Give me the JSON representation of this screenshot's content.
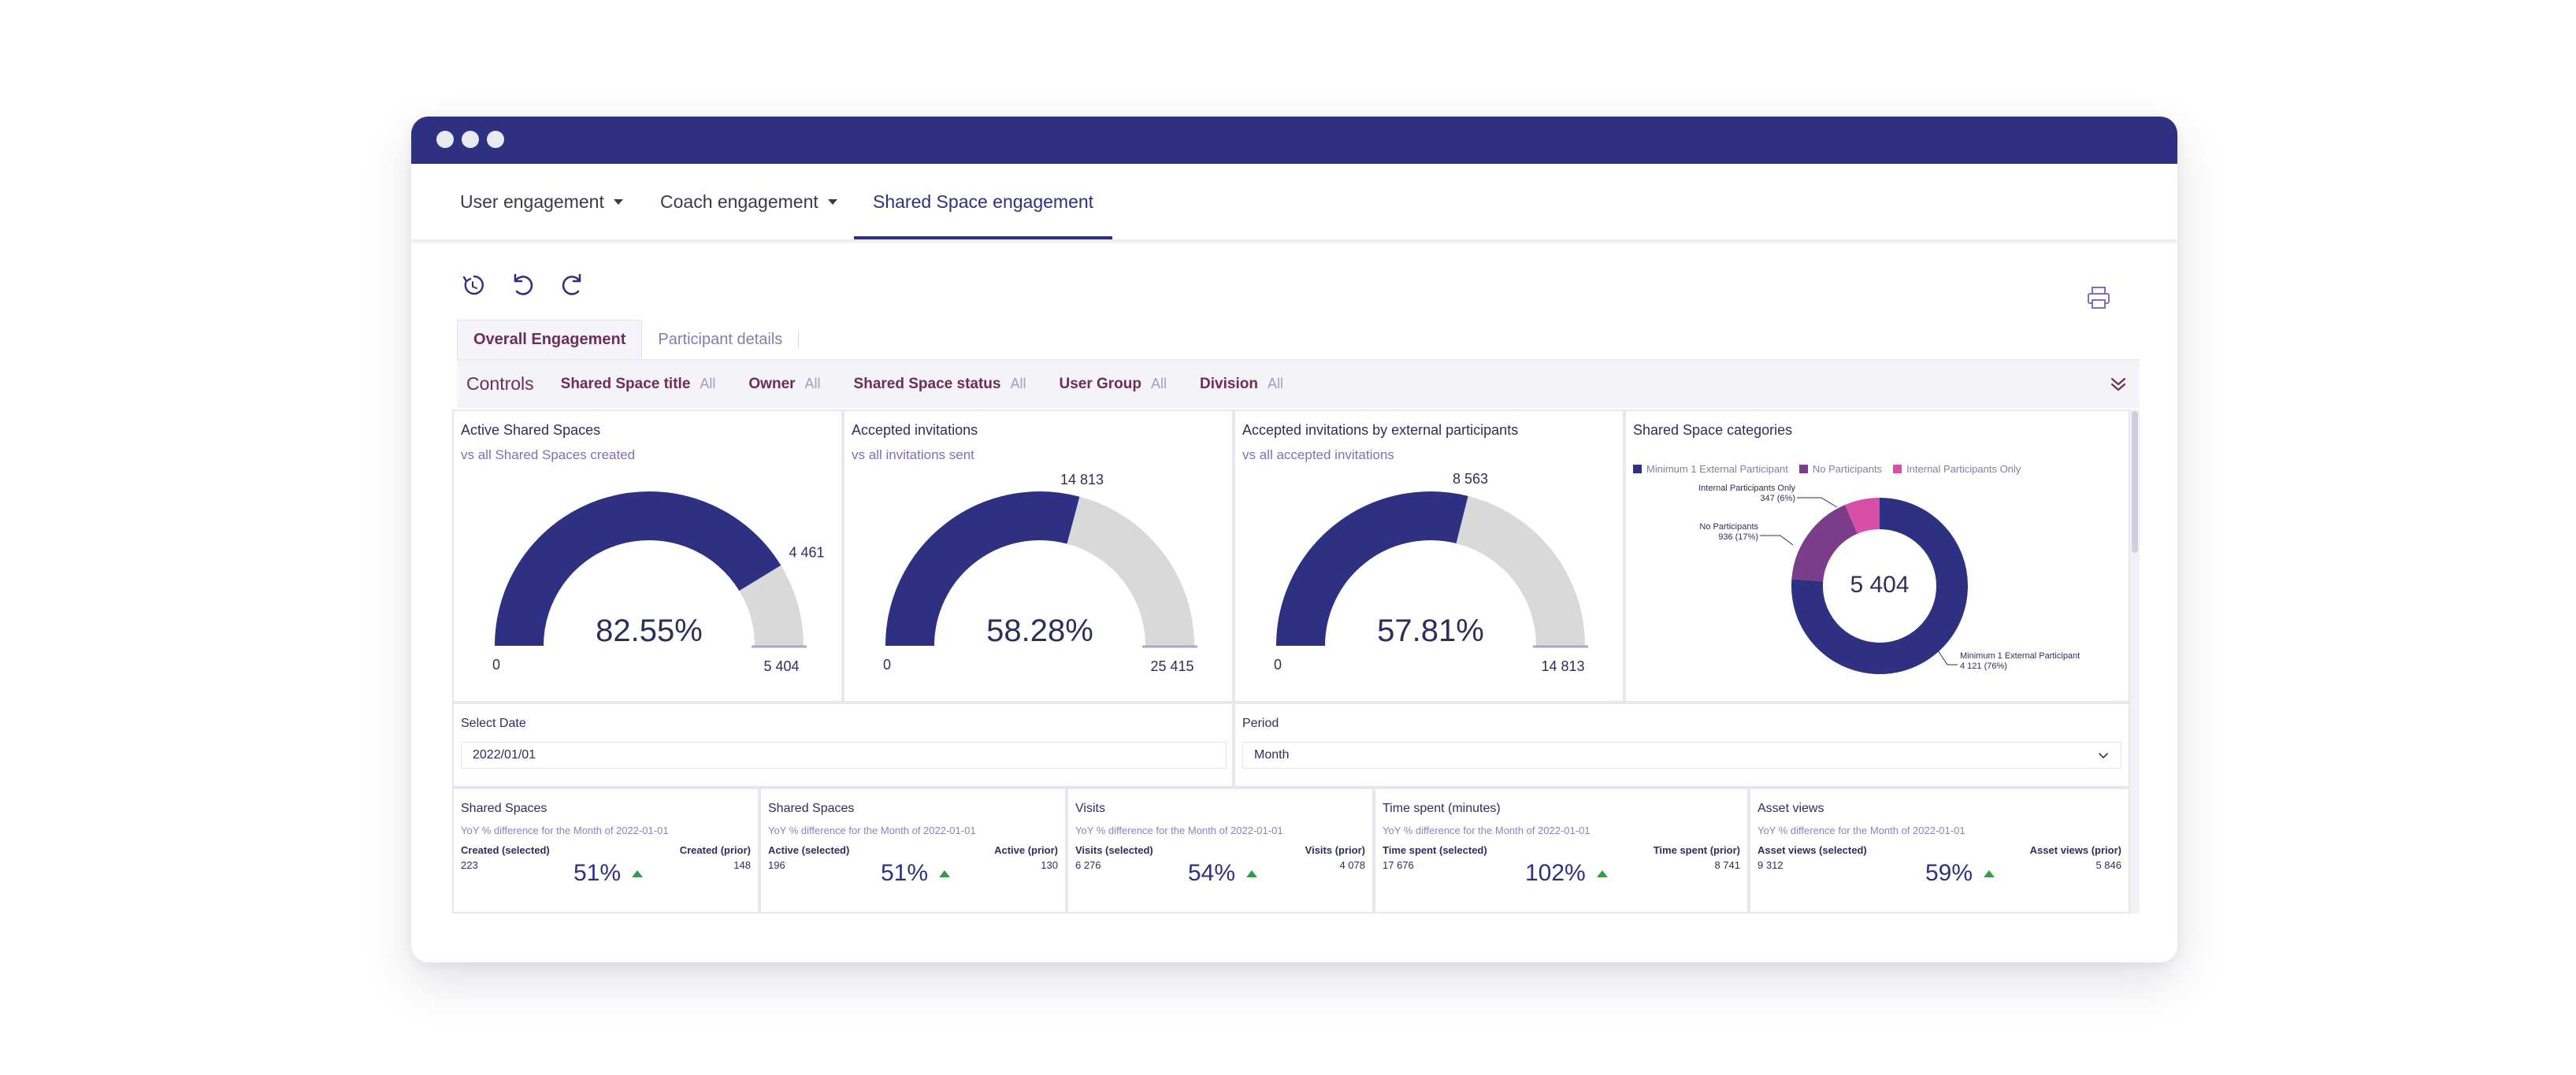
{
  "nav": {
    "tabs": [
      {
        "label": "User engagement"
      },
      {
        "label": "Coach engagement"
      },
      {
        "label": "Shared Space engagement"
      }
    ]
  },
  "toolbar": {
    "reset_icon": "reset-icon",
    "undo_icon": "undo-icon",
    "redo_icon": "redo-icon",
    "print_icon": "print-icon"
  },
  "subtabs": [
    {
      "label": "Overall Engagement"
    },
    {
      "label": "Participant details"
    }
  ],
  "controls": {
    "title": "Controls",
    "filters": [
      {
        "label": "Shared Space title",
        "value": "All"
      },
      {
        "label": "Owner",
        "value": "All"
      },
      {
        "label": "Shared Space status",
        "value": "All"
      },
      {
        "label": "User Group",
        "value": "All"
      },
      {
        "label": "Division",
        "value": "All"
      }
    ]
  },
  "gauges": [
    {
      "title": "Active Shared Spaces",
      "subtitle": "vs all Shared Spaces created",
      "value": 4461,
      "max": 5404,
      "value_label": "4 461",
      "min_label": "0",
      "max_label": "5 404",
      "percent_label": "82.55%"
    },
    {
      "title": "Accepted invitations",
      "subtitle": "vs all invitations sent",
      "value": 14813,
      "max": 25415,
      "value_label": "14 813",
      "min_label": "0",
      "max_label": "25 415",
      "percent_label": "58.28%"
    },
    {
      "title": "Accepted invitations by external participants",
      "subtitle": "vs all accepted invitations",
      "value": 8563,
      "max": 14813,
      "value_label": "8 563",
      "min_label": "0",
      "max_label": "14 813",
      "percent_label": "57.81%"
    }
  ],
  "donut": {
    "title": "Shared Space categories",
    "total_label": "5 404",
    "legend": [
      {
        "label": "Minimum 1 External Participant",
        "color": "#2e3182"
      },
      {
        "label": "No Participants",
        "color": "#7b3c8a"
      },
      {
        "label": "Internal Participants Only",
        "color": "#d94fa8"
      }
    ],
    "callouts": {
      "internal_name": "Internal Participants Only",
      "internal_value": "347 (6%)",
      "none_name": "No Participants",
      "none_value": "936 (17%)",
      "external_name": "Minimum 1 External Participant",
      "external_value": "4 121 (76%)"
    }
  },
  "chart_data": {
    "type": "pie",
    "title": "Shared Space categories",
    "categories": [
      "Minimum 1 External Participant",
      "No Participants",
      "Internal Participants Only"
    ],
    "values": [
      4121,
      936,
      347
    ],
    "total": 5404
  },
  "date_filter": {
    "label": "Select Date",
    "value": "2022/01/01"
  },
  "period_filter": {
    "label": "Period",
    "value": "Month"
  },
  "kpis": [
    {
      "title": "Shared Spaces",
      "subtitle": "YoY % difference for the Month of 2022-01-01",
      "left_label": "Created (selected)",
      "left_value": "223",
      "right_label": "Created (prior)",
      "right_value": "148",
      "pct": "51%"
    },
    {
      "title": "Shared Spaces",
      "subtitle": "YoY % difference for the Month of 2022-01-01",
      "left_label": "Active (selected)",
      "left_value": "196",
      "right_label": "Active (prior)",
      "right_value": "130",
      "pct": "51%"
    },
    {
      "title": "Visits",
      "subtitle": "YoY % difference for the Month of 2022-01-01",
      "left_label": "Visits (selected)",
      "left_value": "6 276",
      "right_label": "Visits (prior)",
      "right_value": "4 078",
      "pct": "54%"
    },
    {
      "title": "Time spent (minutes)",
      "subtitle": "YoY % difference for the Month of 2022-01-01",
      "left_label": "Time spent (selected)",
      "left_value": "17 676",
      "right_label": "Time spent (prior)",
      "right_value": "8 741",
      "pct": "102%"
    },
    {
      "title": "Asset views",
      "subtitle": "YoY % difference for the Month of 2022-01-01",
      "left_label": "Asset views (selected)",
      "left_value": "9 312",
      "right_label": "Asset views (prior)",
      "right_value": "5 846",
      "pct": "59%"
    }
  ],
  "colors": {
    "primary": "#2e3182",
    "gauge_rest": "#d9d9d9",
    "accent_purple": "#6e2c5a",
    "up_green": "#2ea043"
  }
}
